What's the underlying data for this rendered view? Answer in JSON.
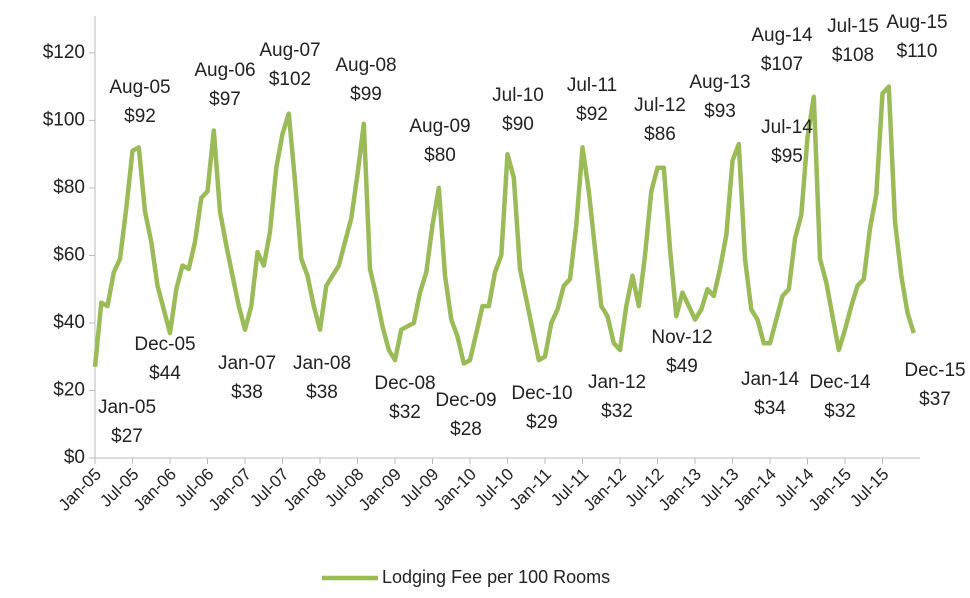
{
  "chart_data": {
    "type": "line",
    "categories": [
      "Jan-05",
      "Feb-05",
      "Mar-05",
      "Apr-05",
      "May-05",
      "Jun-05",
      "Jul-05",
      "Aug-05",
      "Sep-05",
      "Oct-05",
      "Nov-05",
      "Dec-05",
      "Jan-06",
      "Feb-06",
      "Mar-06",
      "Apr-06",
      "May-06",
      "Jun-06",
      "Jul-06",
      "Aug-06",
      "Sep-06",
      "Oct-06",
      "Nov-06",
      "Dec-06",
      "Jan-07",
      "Feb-07",
      "Mar-07",
      "Apr-07",
      "May-07",
      "Jun-07",
      "Jul-07",
      "Aug-07",
      "Sep-07",
      "Oct-07",
      "Nov-07",
      "Dec-07",
      "Jan-08",
      "Feb-08",
      "Mar-08",
      "Apr-08",
      "May-08",
      "Jun-08",
      "Jul-08",
      "Aug-08",
      "Sep-08",
      "Oct-08",
      "Nov-08",
      "Dec-08",
      "Jan-09",
      "Feb-09",
      "Mar-09",
      "Apr-09",
      "May-09",
      "Jun-09",
      "Jul-09",
      "Aug-09",
      "Sep-09",
      "Oct-09",
      "Nov-09",
      "Dec-09",
      "Jan-10",
      "Feb-10",
      "Mar-10",
      "Apr-10",
      "May-10",
      "Jun-10",
      "Jul-10",
      "Aug-10",
      "Sep-10",
      "Oct-10",
      "Nov-10",
      "Dec-10",
      "Jan-11",
      "Feb-11",
      "Mar-11",
      "Apr-11",
      "May-11",
      "Jun-11",
      "Jul-11",
      "Aug-11",
      "Sep-11",
      "Oct-11",
      "Nov-11",
      "Dec-11",
      "Jan-12",
      "Feb-12",
      "Mar-12",
      "Apr-12",
      "May-12",
      "Jun-12",
      "Jul-12",
      "Aug-12",
      "Sep-12",
      "Oct-12",
      "Nov-12",
      "Dec-12",
      "Jan-13",
      "Feb-13",
      "Mar-13",
      "Apr-13",
      "May-13",
      "Jun-13",
      "Jul-13",
      "Aug-13",
      "Sep-13",
      "Oct-13",
      "Nov-13",
      "Dec-13",
      "Jan-14",
      "Feb-14",
      "Mar-14",
      "Apr-14",
      "May-14",
      "Jun-14",
      "Jul-14",
      "Aug-14",
      "Sep-14",
      "Oct-14",
      "Nov-14",
      "Dec-14",
      "Jan-15",
      "Feb-15",
      "Mar-15",
      "Apr-15",
      "May-15",
      "Jun-15",
      "Jul-15",
      "Aug-15",
      "Sep-15",
      "Oct-15",
      "Nov-15",
      "Dec-15"
    ],
    "series": [
      {
        "name": "Lodging Fee per 100 Rooms",
        "color": "#9bbb59",
        "values": [
          27,
          46,
          45,
          55,
          59,
          74,
          91,
          92,
          73,
          64,
          51,
          44,
          37,
          50,
          57,
          56,
          64,
          77,
          79,
          97,
          73,
          63,
          54,
          45,
          38,
          45,
          61,
          57,
          67,
          86,
          96,
          102,
          82,
          59,
          54,
          45,
          38,
          51,
          54,
          57,
          64,
          71,
          84,
          99,
          56,
          48,
          39,
          32,
          29,
          38,
          39,
          40,
          49,
          55,
          69,
          80,
          54,
          41,
          36,
          28,
          29,
          37,
          45,
          45,
          55,
          60,
          90,
          83,
          56,
          47,
          38,
          29,
          30,
          40,
          44,
          51,
          53,
          69,
          92,
          79,
          62,
          45,
          42,
          34,
          32,
          45,
          54,
          45,
          60,
          79,
          86,
          86,
          62,
          42,
          49,
          45,
          41,
          44,
          50,
          48,
          56,
          66,
          88,
          93,
          59,
          44,
          41,
          34,
          34,
          41,
          48,
          50,
          65,
          72,
          95,
          107,
          59,
          52,
          42,
          32,
          38,
          45,
          51,
          53,
          68,
          78,
          108,
          110,
          70,
          54,
          43,
          37
        ]
      }
    ],
    "xticks": [
      "Jan-05",
      "Jul-05",
      "Jan-06",
      "Jul-06",
      "Jan-07",
      "Jul-07",
      "Jan-08",
      "Jul-08",
      "Jan-09",
      "Jul-09",
      "Jan-10",
      "Jul-10",
      "Jan-11",
      "Jul-11",
      "Jan-12",
      "Jul-12",
      "Jan-13",
      "Jul-13",
      "Jan-14",
      "Jul-14",
      "Jan-15",
      "Jul-15"
    ],
    "ylim": [
      0,
      125
    ],
    "yticks": [
      {
        "value": 0,
        "label": "$0"
      },
      {
        "value": 20,
        "label": "$20"
      },
      {
        "value": 40,
        "label": "$40"
      },
      {
        "value": 60,
        "label": "$60"
      },
      {
        "value": 80,
        "label": "$80"
      },
      {
        "value": 100,
        "label": "$100"
      },
      {
        "value": 120,
        "label": "$120"
      }
    ],
    "annotations": [
      {
        "x": "Jan-05",
        "value": 27,
        "label": "$27"
      },
      {
        "x": "Aug-05",
        "value": 92,
        "label": "$92"
      },
      {
        "x": "Dec-05",
        "value": 44,
        "label": "$44"
      },
      {
        "x": "Aug-06",
        "value": 97,
        "label": "$97"
      },
      {
        "x": "Jan-07",
        "value": 38,
        "label": "$38"
      },
      {
        "x": "Aug-07",
        "value": 102,
        "label": "$102"
      },
      {
        "x": "Jan-08",
        "value": 38,
        "label": "$38"
      },
      {
        "x": "Aug-08",
        "value": 99,
        "label": "$99"
      },
      {
        "x": "Dec-08",
        "value": 32,
        "label": "$32"
      },
      {
        "x": "Aug-09",
        "value": 80,
        "label": "$80"
      },
      {
        "x": "Dec-09",
        "value": 28,
        "label": "$28"
      },
      {
        "x": "Jul-10",
        "value": 90,
        "label": "$90"
      },
      {
        "x": "Dec-10",
        "value": 29,
        "label": "$29"
      },
      {
        "x": "Jul-11",
        "value": 92,
        "label": "$92"
      },
      {
        "x": "Jan-12",
        "value": 32,
        "label": "$32"
      },
      {
        "x": "Jul-12",
        "value": 86,
        "label": "$86"
      },
      {
        "x": "Nov-12",
        "value": 49,
        "label": "$49"
      },
      {
        "x": "Aug-13",
        "value": 93,
        "label": "$93"
      },
      {
        "x": "Jul-14",
        "value": 95,
        "label": "$95"
      },
      {
        "x": "Jan-14",
        "value": 34,
        "label": "$34"
      },
      {
        "x": "Aug-14",
        "value": 107,
        "label": "$107"
      },
      {
        "x": "Dec-14",
        "value": 32,
        "label": "$32"
      },
      {
        "x": "Jul-15",
        "value": 108,
        "label": "$108"
      },
      {
        "x": "Aug-15",
        "value": 110,
        "label": "$110"
      },
      {
        "x": "Dec-15",
        "value": 37,
        "label": "$37"
      }
    ],
    "legend": "bottom"
  }
}
